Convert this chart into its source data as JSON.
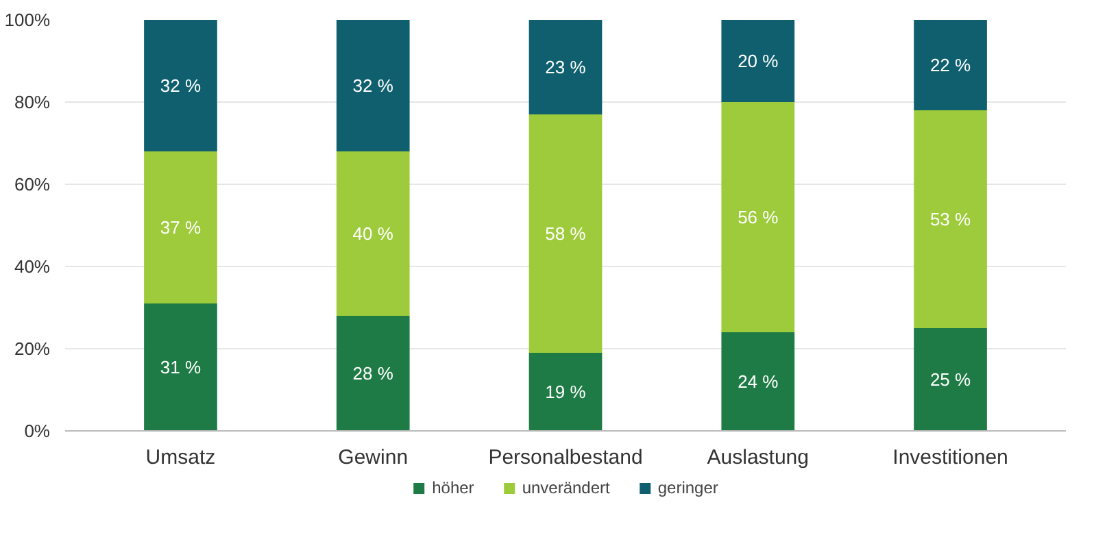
{
  "chart_data": {
    "type": "bar",
    "stacked": true,
    "categories": [
      "Umsatz",
      "Gewinn",
      "Personalbestand",
      "Auslastung",
      "Investitionen"
    ],
    "series": [
      {
        "name": "höher",
        "color": "#1e7b45",
        "values": [
          31,
          28,
          19,
          24,
          25
        ],
        "value_labels": [
          "31 %",
          "28 %",
          "19 %",
          "24 %",
          "25 %"
        ]
      },
      {
        "name": "unverändert",
        "color": "#9dcb3b",
        "values": [
          37,
          40,
          58,
          56,
          53
        ],
        "value_labels": [
          "37 %",
          "40 %",
          "58 %",
          "56 %",
          "53 %"
        ]
      },
      {
        "name": "geringer",
        "color": "#0f5f6f",
        "values": [
          32,
          32,
          23,
          20,
          22
        ],
        "value_labels": [
          "32 %",
          "32 %",
          "23 %",
          "20 %",
          "22 %"
        ]
      }
    ],
    "ylim": [
      0,
      100
    ],
    "yticks": [
      {
        "value": 0,
        "label": "0%"
      },
      {
        "value": 20,
        "label": "20%"
      },
      {
        "value": 40,
        "label": "40%"
      },
      {
        "value": 60,
        "label": "60%"
      },
      {
        "value": 80,
        "label": "80%"
      },
      {
        "value": 100,
        "label": "100%"
      }
    ],
    "grid": "y",
    "legend": "bottom"
  }
}
